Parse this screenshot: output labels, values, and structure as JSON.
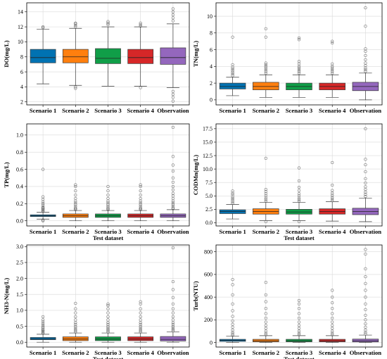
{
  "chart_data": [
    {
      "type": "box",
      "ylabel": "DO(mg/L)",
      "xlabel": "",
      "ylim": [
        1.6,
        15.2
      ],
      "yticks": [
        2,
        4,
        6,
        8,
        10,
        12,
        14
      ],
      "grid": true,
      "categories": [
        "Scenario 1",
        "Scenario 2",
        "Scenario 3",
        "Scenario 4",
        "Observation"
      ],
      "series": [
        {
          "q1": 7.2,
          "median": 7.9,
          "q3": 9.0,
          "whislo": 4.4,
          "whishi": 11.7,
          "fliers": [
            11.9,
            12.0
          ]
        },
        {
          "q1": 7.2,
          "median": 8.0,
          "q3": 9.0,
          "whislo": 4.2,
          "whishi": 11.8,
          "fliers": [
            4.0,
            3.8,
            12.0,
            12.2,
            12.4,
            12.5
          ]
        },
        {
          "q1": 7.1,
          "median": 7.8,
          "q3": 9.1,
          "whislo": 4.1,
          "whishi": 12.0,
          "fliers": [
            12.3,
            12.5,
            12.7
          ]
        },
        {
          "q1": 7.1,
          "median": 7.9,
          "q3": 9.0,
          "whislo": 4.1,
          "whishi": 12.0,
          "fliers": [
            3.9,
            12.1,
            12.3,
            12.5
          ]
        },
        {
          "q1": 7.0,
          "median": 7.9,
          "q3": 9.2,
          "whislo": 3.9,
          "whishi": 12.4,
          "fliers": [
            2.1,
            2.6,
            3.0,
            3.4,
            12.8,
            13.2,
            13.6,
            14.0,
            14.4
          ]
        }
      ]
    },
    {
      "type": "box",
      "ylabel": "TN(mg/L)",
      "xlabel": "",
      "ylim": [
        -0.6,
        11.6
      ],
      "yticks": [
        0,
        2,
        4,
        6,
        8,
        10
      ],
      "grid": true,
      "categories": [
        "Scenario 1",
        "Scenario 2",
        "Scenario 3",
        "Scenario 4",
        "Observation"
      ],
      "series": [
        {
          "q1": 1.3,
          "median": 1.6,
          "q3": 2.0,
          "whislo": 0.5,
          "whishi": 2.7,
          "fliers": [
            2.9,
            3.1,
            3.3,
            3.5,
            3.7,
            3.9,
            4.2,
            7.5
          ]
        },
        {
          "q1": 1.2,
          "median": 1.6,
          "q3": 2.1,
          "whislo": 0.3,
          "whishi": 3.0,
          "fliers": [
            3.2,
            3.4,
            3.6,
            3.8,
            4.0,
            4.2,
            4.4,
            7.5,
            8.5
          ]
        },
        {
          "q1": 1.2,
          "median": 1.6,
          "q3": 2.0,
          "whislo": 0.3,
          "whishi": 3.0,
          "fliers": [
            3.2,
            3.4,
            3.6,
            3.8,
            4.0,
            4.3,
            4.6,
            7.2,
            7.4
          ]
        },
        {
          "q1": 1.2,
          "median": 1.6,
          "q3": 2.0,
          "whislo": 0.3,
          "whishi": 3.0,
          "fliers": [
            3.2,
            3.4,
            3.6,
            3.8,
            4.0,
            4.3,
            6.8,
            7.0
          ]
        },
        {
          "q1": 1.1,
          "median": 1.6,
          "q3": 2.1,
          "whislo": 0.0,
          "whishi": 3.2,
          "fliers": [
            3.4,
            3.6,
            3.8,
            4.1,
            4.4,
            4.8,
            5.3,
            5.8,
            6.1,
            8.8,
            11.0
          ]
        }
      ]
    },
    {
      "type": "box",
      "ylabel": "TP(mg/L)",
      "xlabel": "",
      "ylim": [
        -0.06,
        1.13
      ],
      "yticks": [
        0.0,
        0.2,
        0.4,
        0.6,
        0.8,
        1.0
      ],
      "grid": true,
      "categories": [
        "Scenario 1",
        "Scenario 2",
        "Scenario 3",
        "Scenario 4",
        "Observation"
      ],
      "series": [
        {
          "q1": 0.05,
          "median": 0.06,
          "q3": 0.07,
          "whislo": 0.02,
          "whishi": 0.1,
          "fliers": [
            0.0,
            0.01,
            0.11,
            0.12,
            0.13,
            0.14,
            0.15,
            0.16,
            0.18,
            0.2,
            0.22,
            0.25,
            0.28,
            0.6
          ]
        },
        {
          "q1": 0.04,
          "median": 0.06,
          "q3": 0.08,
          "whislo": 0.0,
          "whishi": 0.12,
          "fliers": [
            0.13,
            0.14,
            0.15,
            0.17,
            0.19,
            0.21,
            0.23,
            0.26,
            0.3,
            0.35,
            0.4,
            0.42
          ]
        },
        {
          "q1": 0.04,
          "median": 0.06,
          "q3": 0.08,
          "whislo": 0.0,
          "whishi": 0.12,
          "fliers": [
            0.13,
            0.14,
            0.15,
            0.17,
            0.19,
            0.21,
            0.23,
            0.26,
            0.3,
            0.35,
            0.4
          ]
        },
        {
          "q1": 0.04,
          "median": 0.06,
          "q3": 0.08,
          "whislo": 0.0,
          "whishi": 0.12,
          "fliers": [
            0.13,
            0.14,
            0.15,
            0.17,
            0.19,
            0.21,
            0.23,
            0.26,
            0.3,
            0.35,
            0.4,
            0.42
          ]
        },
        {
          "q1": 0.04,
          "median": 0.06,
          "q3": 0.08,
          "whislo": 0.0,
          "whishi": 0.13,
          "fliers": [
            0.14,
            0.15,
            0.17,
            0.19,
            0.21,
            0.23,
            0.26,
            0.29,
            0.32,
            0.36,
            0.4,
            0.45,
            0.5,
            0.58,
            0.65,
            0.75,
            1.09
          ]
        }
      ]
    },
    {
      "type": "box",
      "ylabel": "CODMn(mg/L)",
      "xlabel": "",
      "ylim": [
        -0.6,
        18.4
      ],
      "yticks": [
        0.0,
        2.5,
        5.0,
        7.5,
        10.0,
        12.5,
        15.0,
        17.5
      ],
      "grid": true,
      "categories": [
        "Scenario 1",
        "Scenario 2",
        "Scenario 3",
        "Scenario 4",
        "Observation"
      ],
      "series": [
        {
          "q1": 1.7,
          "median": 2.1,
          "q3": 2.4,
          "whislo": 0.7,
          "whishi": 3.4,
          "fliers": [
            3.6,
            3.9,
            4.2,
            4.5,
            4.8,
            5.2,
            5.5,
            5.9
          ]
        },
        {
          "q1": 1.6,
          "median": 2.1,
          "q3": 2.6,
          "whislo": 0.4,
          "whishi": 3.8,
          "fliers": [
            0.2,
            4.0,
            4.3,
            4.6,
            5.0,
            5.4,
            5.8,
            6.2,
            12.0
          ]
        },
        {
          "q1": 1.6,
          "median": 2.0,
          "q3": 2.5,
          "whislo": 0.4,
          "whishi": 3.8,
          "fliers": [
            0.2,
            4.0,
            4.3,
            4.6,
            5.0,
            5.4,
            6.0,
            6.6,
            7.8,
            10.2
          ]
        },
        {
          "q1": 1.6,
          "median": 2.1,
          "q3": 2.6,
          "whislo": 0.3,
          "whishi": 3.9,
          "fliers": [
            4.1,
            4.4,
            4.7,
            5.1,
            5.5,
            6.0,
            7.0,
            11.2
          ]
        },
        {
          "q1": 1.5,
          "median": 2.1,
          "q3": 2.7,
          "whislo": 0.2,
          "whishi": 4.6,
          "fliers": [
            4.9,
            5.3,
            5.7,
            6.2,
            6.7,
            7.4,
            8.2,
            9.5,
            10.8,
            11.8,
            17.5
          ]
        }
      ]
    },
    {
      "type": "box",
      "ylabel": "NH3-N(mg/L)",
      "xlabel": "",
      "ylim": [
        -0.15,
        3.05
      ],
      "yticks": [
        0.0,
        0.5,
        1.0,
        1.5,
        2.0,
        2.5,
        3.0
      ],
      "grid": true,
      "categories": [
        "Scenario 1",
        "Scenario 2",
        "Scenario 3",
        "Scenario 4",
        "Observation"
      ],
      "series": [
        {
          "q1": 0.08,
          "median": 0.11,
          "q3": 0.15,
          "whislo": 0.0,
          "whishi": 0.25,
          "fliers": [
            0.28,
            0.31,
            0.34,
            0.37,
            0.4,
            0.44,
            0.48,
            0.53,
            0.58,
            0.64,
            0.7,
            0.8
          ]
        },
        {
          "q1": 0.05,
          "median": 0.1,
          "q3": 0.17,
          "whislo": 0.0,
          "whishi": 0.29,
          "fliers": [
            0.32,
            0.36,
            0.4,
            0.45,
            0.5,
            0.56,
            0.62,
            0.7,
            0.8,
            0.92,
            1.05,
            1.22
          ]
        },
        {
          "q1": 0.05,
          "median": 0.1,
          "q3": 0.17,
          "whislo": 0.0,
          "whishi": 0.29,
          "fliers": [
            0.32,
            0.36,
            0.4,
            0.45,
            0.5,
            0.56,
            0.62,
            0.7,
            0.8,
            0.92,
            1.05,
            1.15,
            1.2
          ]
        },
        {
          "q1": 0.05,
          "median": 0.1,
          "q3": 0.17,
          "whislo": 0.0,
          "whishi": 0.29,
          "fliers": [
            0.32,
            0.36,
            0.4,
            0.45,
            0.5,
            0.56,
            0.62,
            0.7,
            0.8,
            0.92,
            1.05,
            1.2,
            1.27
          ]
        },
        {
          "q1": 0.04,
          "median": 0.09,
          "q3": 0.18,
          "whislo": 0.0,
          "whishi": 0.32,
          "fliers": [
            0.36,
            0.4,
            0.45,
            0.5,
            0.56,
            0.62,
            0.7,
            0.8,
            0.92,
            1.05,
            1.2,
            1.4,
            1.65,
            1.9,
            2.96
          ]
        }
      ]
    },
    {
      "type": "box",
      "ylabel": "Turb(NTU)",
      "xlabel": "",
      "ylim": [
        -40,
        860
      ],
      "yticks": [
        0,
        200,
        400,
        600,
        800
      ],
      "grid": true,
      "categories": [
        "Scenario 1",
        "Scenario 2",
        "Scenario 3",
        "Scenario 4",
        "Observation"
      ],
      "series": [
        {
          "q1": 10,
          "median": 18,
          "q3": 28,
          "whislo": 0,
          "whishi": 55,
          "fliers": [
            62,
            75,
            90,
            110,
            135,
            160,
            190,
            230,
            280,
            340,
            420,
            510,
            555
          ]
        },
        {
          "q1": 6,
          "median": 15,
          "q3": 28,
          "whislo": 0,
          "whishi": 60,
          "fliers": [
            68,
            82,
            100,
            125,
            150,
            180,
            215,
            255,
            300,
            360,
            420,
            530
          ]
        },
        {
          "q1": 6,
          "median": 15,
          "q3": 28,
          "whislo": 0,
          "whishi": 60,
          "fliers": [
            68,
            82,
            100,
            125,
            150,
            180,
            215,
            255,
            300,
            340,
            370
          ]
        },
        {
          "q1": 6,
          "median": 15,
          "q3": 28,
          "whislo": 0,
          "whishi": 60,
          "fliers": [
            68,
            82,
            100,
            125,
            150,
            180,
            215,
            255,
            300,
            350,
            400,
            460
          ]
        },
        {
          "q1": 5,
          "median": 15,
          "q3": 30,
          "whislo": 0,
          "whishi": 65,
          "fliers": [
            75,
            90,
            110,
            135,
            165,
            200,
            240,
            290,
            340,
            400,
            460,
            520,
            580,
            650,
            780,
            820
          ]
        }
      ]
    }
  ],
  "panel_xlabels": [
    "",
    "",
    "Test dataset",
    "Test dataset",
    "Test dataset",
    "Test dataset"
  ],
  "colors": [
    "#0072b2",
    "#ff7f0e",
    "#109e48",
    "#d62728",
    "#9467bd"
  ]
}
